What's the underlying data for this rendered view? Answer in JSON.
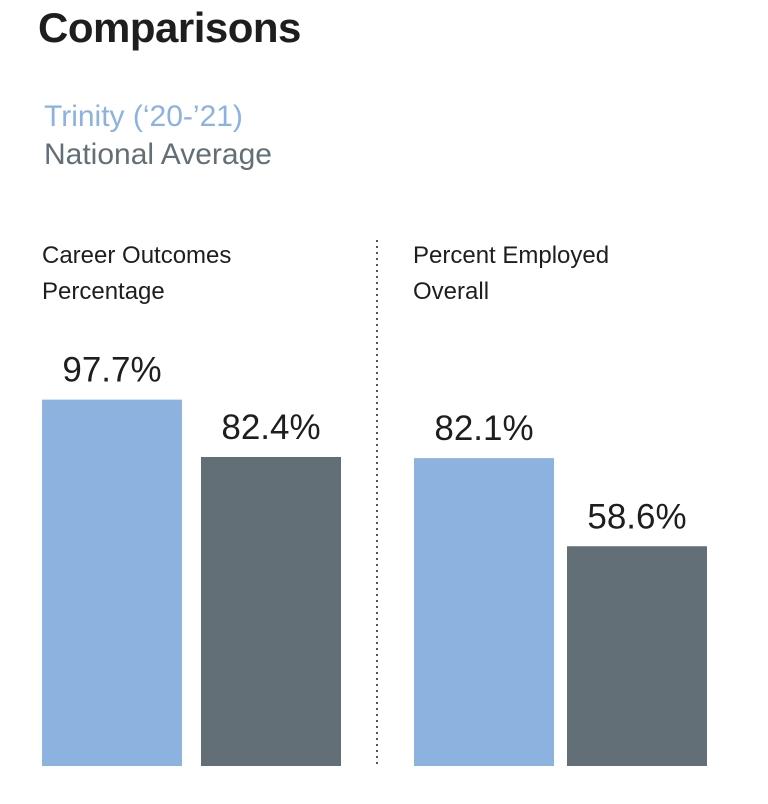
{
  "title": "Comparisons",
  "colors": {
    "trinity": "#8cb2df",
    "national": "#636f76",
    "divider": "#555555"
  },
  "chart_data": {
    "type": "bar",
    "categories": [
      "Career Outcomes\nPercentage",
      "Percent  Employed\nOverall"
    ],
    "series": [
      {
        "name": "Trinity (‘20-’21)",
        "values": [
          97.7,
          82.1
        ],
        "labels": [
          "97.7%",
          "82.1%"
        ]
      },
      {
        "name": "National Average",
        "values": [
          82.4,
          58.6
        ],
        "labels": [
          "82.4%",
          "58.6%"
        ]
      }
    ],
    "ylim": [
      0,
      100
    ],
    "legend": "top-left",
    "grid": false
  }
}
